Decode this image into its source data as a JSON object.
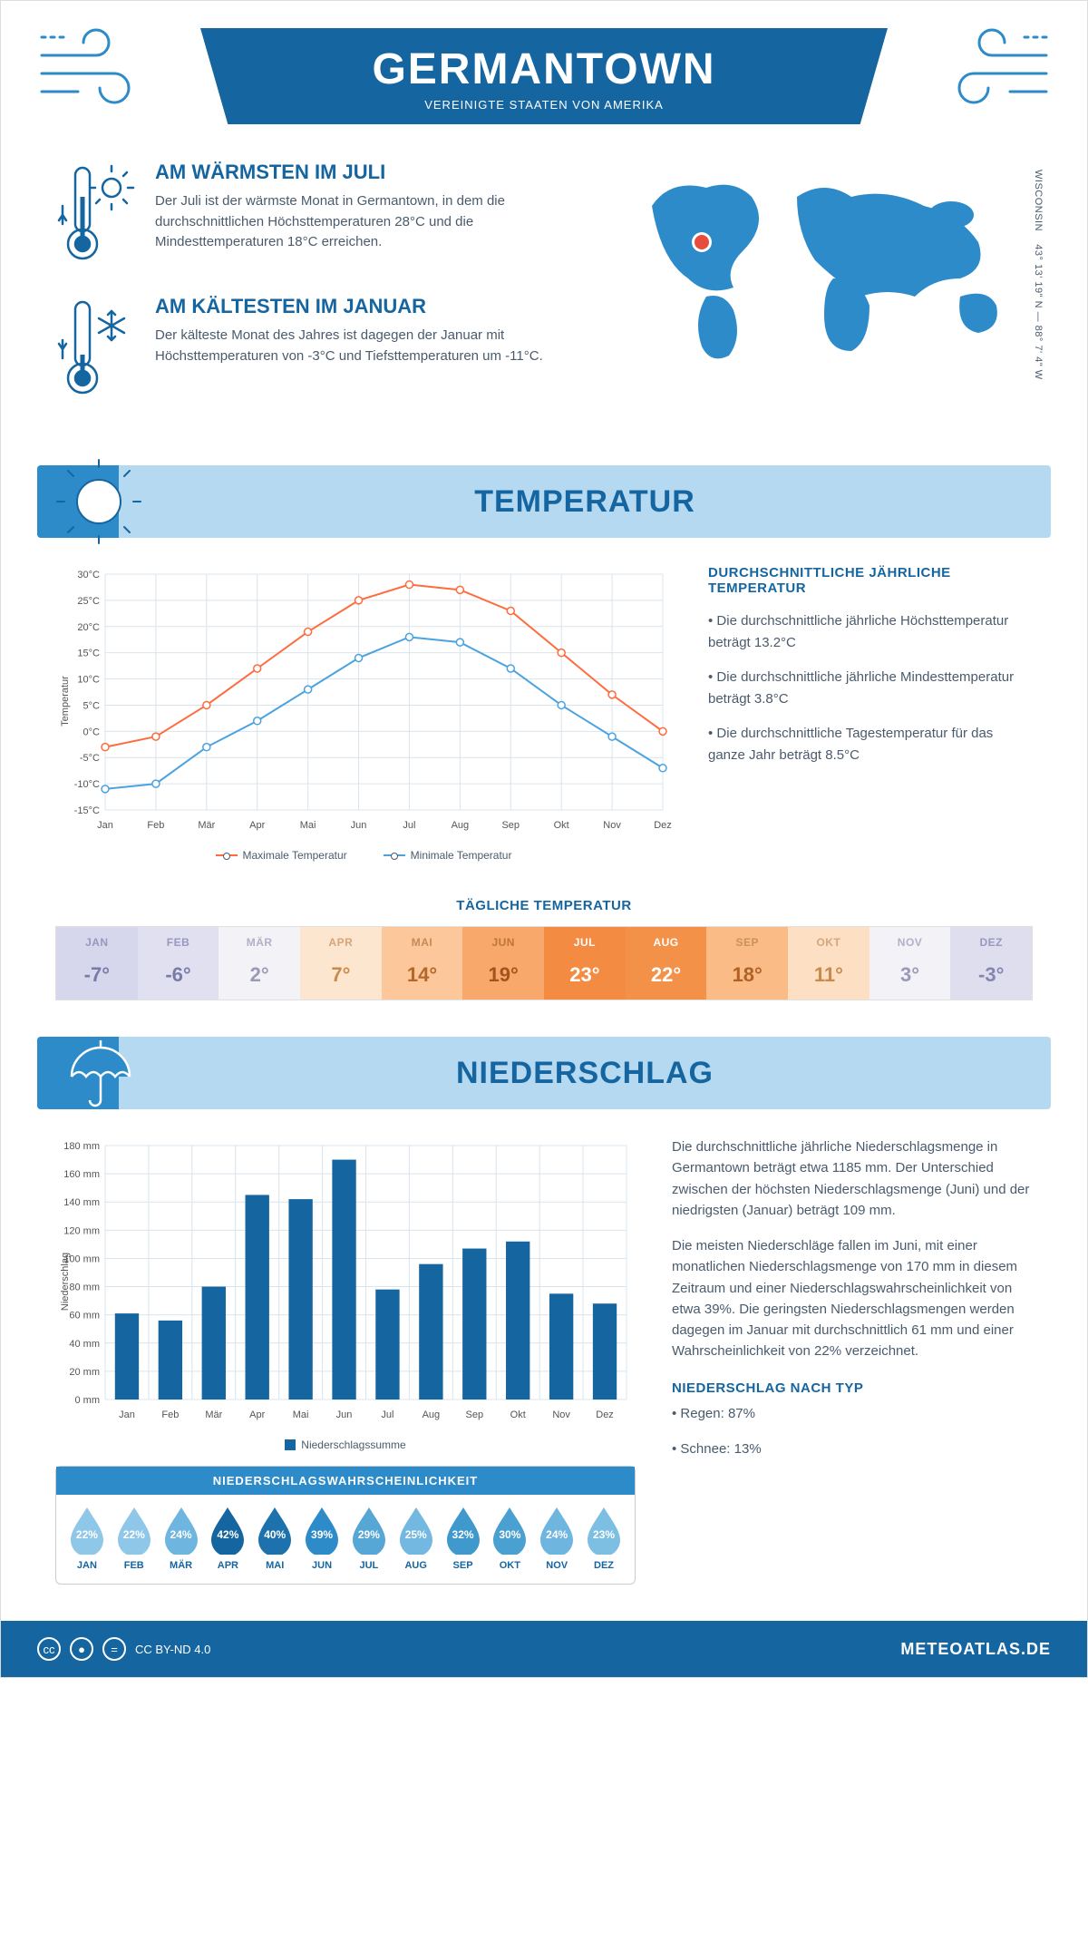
{
  "header": {
    "title": "GERMANTOWN",
    "subtitle": "VEREINIGTE STAATEN VON AMERIKA"
  },
  "coords": {
    "region": "WISCONSIN",
    "lat": "43° 13' 19\" N",
    "lon": "88° 7' 4\" W"
  },
  "facts": {
    "warm": {
      "title": "AM WÄRMSTEN IM JULI",
      "text": "Der Juli ist der wärmste Monat in Germantown, in dem die durchschnittlichen Höchsttemperaturen 28°C und die Mindesttemperaturen 18°C erreichen."
    },
    "cold": {
      "title": "AM KÄLTESTEN IM JANUAR",
      "text": "Der kälteste Monat des Jahres ist dagegen der Januar mit Höchsttemperaturen von -3°C und Tiefsttemperaturen um -11°C."
    }
  },
  "months": [
    "Jan",
    "Feb",
    "Mär",
    "Apr",
    "Mai",
    "Jun",
    "Jul",
    "Aug",
    "Sep",
    "Okt",
    "Nov",
    "Dez"
  ],
  "months_upper": [
    "JAN",
    "FEB",
    "MÄR",
    "APR",
    "MAI",
    "JUN",
    "JUL",
    "AUG",
    "SEP",
    "OKT",
    "NOV",
    "DEZ"
  ],
  "temperature": {
    "section_title": "TEMPERATUR",
    "chart": {
      "type": "line",
      "y_label": "Temperatur",
      "ylim": [
        -15,
        30
      ],
      "ytick_step": 5,
      "y_unit": "°C",
      "series": [
        {
          "name": "Maximale Temperatur",
          "color": "#ff6b3d",
          "values": [
            -3,
            -1,
            5,
            12,
            19,
            25,
            28,
            27,
            23,
            15,
            7,
            0
          ]
        },
        {
          "name": "Minimale Temperatur",
          "color": "#4aa3e0",
          "values": [
            -11,
            -10,
            -3,
            2,
            8,
            14,
            18,
            17,
            12,
            5,
            -1,
            -7
          ]
        }
      ],
      "grid_color": "#d9e4ec",
      "background": "#ffffff",
      "marker_size": 4,
      "line_width": 2
    },
    "summary": {
      "title": "DURCHSCHNITTLICHE JÄHRLICHE TEMPERATUR",
      "bullets": [
        "• Die durchschnittliche jährliche Höchsttemperatur beträgt 13.2°C",
        "• Die durchschnittliche jährliche Mindesttemperatur beträgt 3.8°C",
        "• Die durchschnittliche Tagestemperatur für das ganze Jahr beträgt 8.5°C"
      ]
    },
    "daily": {
      "title": "TÄGLICHE TEMPERATUR",
      "values": [
        "-7°",
        "-6°",
        "2°",
        "7°",
        "14°",
        "19°",
        "23°",
        "22°",
        "18°",
        "11°",
        "3°",
        "-3°"
      ],
      "bg_colors": [
        "#d6d6ec",
        "#e0e0f0",
        "#f2f2f7",
        "#fde6cf",
        "#fbc79b",
        "#f7a86a",
        "#f38b43",
        "#f49149",
        "#fabb87",
        "#fddfc4",
        "#f2f2f7",
        "#dedeef"
      ],
      "txt_colors": [
        "#7a7aa8",
        "#7a7aa8",
        "#9a9ab8",
        "#c98b4a",
        "#b4682a",
        "#a2541c",
        "#ffffff",
        "#ffffff",
        "#b06224",
        "#c98b4a",
        "#9a9ab8",
        "#8585b0"
      ],
      "label_colors": [
        "#9898c0",
        "#9898c0",
        "#b0b0c8",
        "#d4a679",
        "#c88a54",
        "#bd7539",
        "#ffffff",
        "#ffffff",
        "#c8925c",
        "#d4a679",
        "#b0b0c8",
        "#9898c0"
      ]
    }
  },
  "precip": {
    "section_title": "NIEDERSCHLAG",
    "chart": {
      "type": "bar",
      "y_label": "Niederschlag",
      "ylim": [
        0,
        180
      ],
      "ytick_step": 20,
      "y_unit": " mm",
      "values": [
        61,
        56,
        80,
        145,
        142,
        170,
        78,
        96,
        107,
        112,
        75,
        68
      ],
      "bar_color": "#1565a0",
      "grid_color": "#d9e4ec",
      "bar_width": 0.55,
      "legend": "Niederschlagssumme"
    },
    "text": {
      "p1": "Die durchschnittliche jährliche Niederschlagsmenge in Germantown beträgt etwa 1185 mm. Der Unterschied zwischen der höchsten Niederschlagsmenge (Juni) und der niedrigsten (Januar) beträgt 109 mm.",
      "p2": "Die meisten Niederschläge fallen im Juni, mit einer monatlichen Niederschlagsmenge von 170 mm in diesem Zeitraum und einer Niederschlagswahrscheinlichkeit von etwa 39%. Die geringsten Niederschlagsmengen werden dagegen im Januar mit durchschnittlich 61 mm und einer Wahrscheinlichkeit von 22% verzeichnet.",
      "type_title": "NIEDERSCHLAG NACH TYP",
      "types": [
        "• Regen: 87%",
        "• Schnee: 13%"
      ]
    },
    "probability": {
      "title": "NIEDERSCHLAGSWAHRSCHEINLICHKEIT",
      "values": [
        "22%",
        "22%",
        "24%",
        "42%",
        "40%",
        "39%",
        "29%",
        "25%",
        "32%",
        "30%",
        "24%",
        "23%"
      ],
      "colors": [
        "#8fc7e8",
        "#8fc7e8",
        "#6eb5df",
        "#1565a0",
        "#1d72ad",
        "#2d8bc9",
        "#56a6d6",
        "#72b8e0",
        "#4099cd",
        "#4aa0d0",
        "#6eb5df",
        "#7dbfe3"
      ]
    }
  },
  "footer": {
    "license": "CC BY-ND 4.0",
    "brand": "METEOATLAS.DE"
  },
  "palette": {
    "dark_blue": "#1565a0",
    "med_blue": "#2d8bc9",
    "light_blue": "#b5d9f0",
    "orange": "#ff6b3d",
    "stroke": "#1565a0"
  }
}
